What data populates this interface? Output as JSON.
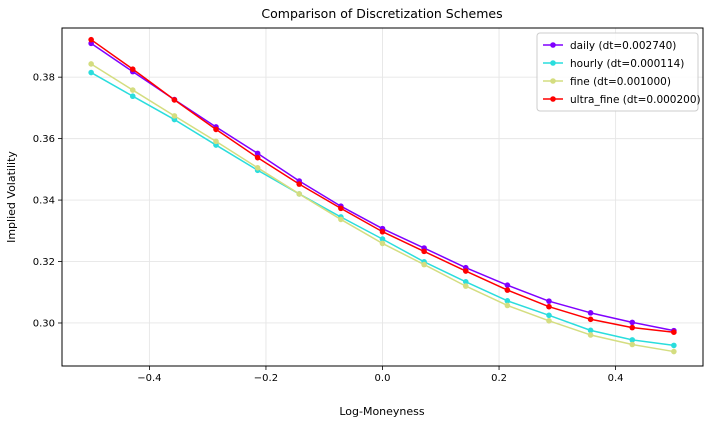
{
  "chart_data": {
    "type": "line",
    "title": "Comparison of Discretization Schemes",
    "xlabel": "Log-Moneyness",
    "ylabel": "Implied Volatility",
    "xlim": [
      -0.55,
      0.55
    ],
    "ylim": [
      0.286,
      0.396
    ],
    "xticks": [
      -0.4,
      -0.2,
      0.0,
      0.2,
      0.4
    ],
    "xtick_labels": [
      "−0.4",
      "−0.2",
      "0.0",
      "0.2",
      "0.4"
    ],
    "yticks": [
      0.3,
      0.32,
      0.34,
      0.36,
      0.38
    ],
    "ytick_labels": [
      "0.30",
      "0.32",
      "0.34",
      "0.36",
      "0.38"
    ],
    "grid": true,
    "legend_position": "top-right",
    "x": [
      -0.5,
      -0.4286,
      -0.3571,
      -0.2857,
      -0.2143,
      -0.1429,
      -0.0714,
      0.0,
      0.0714,
      0.1429,
      0.2143,
      0.2857,
      0.3571,
      0.4286,
      0.5
    ],
    "series": [
      {
        "name": "daily (dt=0.002740)",
        "color": "#8000ff",
        "values": [
          0.391,
          0.3818,
          0.3727,
          0.3638,
          0.3552,
          0.3462,
          0.338,
          0.3307,
          0.3244,
          0.318,
          0.3123,
          0.3071,
          0.3033,
          0.3002,
          0.2975
        ]
      },
      {
        "name": "hourly (dt=0.000114)",
        "color": "#2adddd",
        "values": [
          0.3815,
          0.3738,
          0.3662,
          0.3579,
          0.3497,
          0.342,
          0.3345,
          0.3273,
          0.3199,
          0.3134,
          0.3072,
          0.3025,
          0.2976,
          0.2945,
          0.2927
        ]
      },
      {
        "name": "fine (dt=0.001000)",
        "color": "#d4dd80",
        "values": [
          0.3843,
          0.3758,
          0.3674,
          0.3591,
          0.3505,
          0.342,
          0.3337,
          0.3259,
          0.319,
          0.312,
          0.3057,
          0.3007,
          0.2961,
          0.293,
          0.2907
        ]
      },
      {
        "name": "ultra_fine (dt=0.000200)",
        "color": "#ff0000",
        "values": [
          0.3922,
          0.3826,
          0.3726,
          0.363,
          0.3538,
          0.3452,
          0.3373,
          0.3297,
          0.3233,
          0.3169,
          0.3107,
          0.3053,
          0.3012,
          0.2985,
          0.297
        ]
      }
    ]
  }
}
